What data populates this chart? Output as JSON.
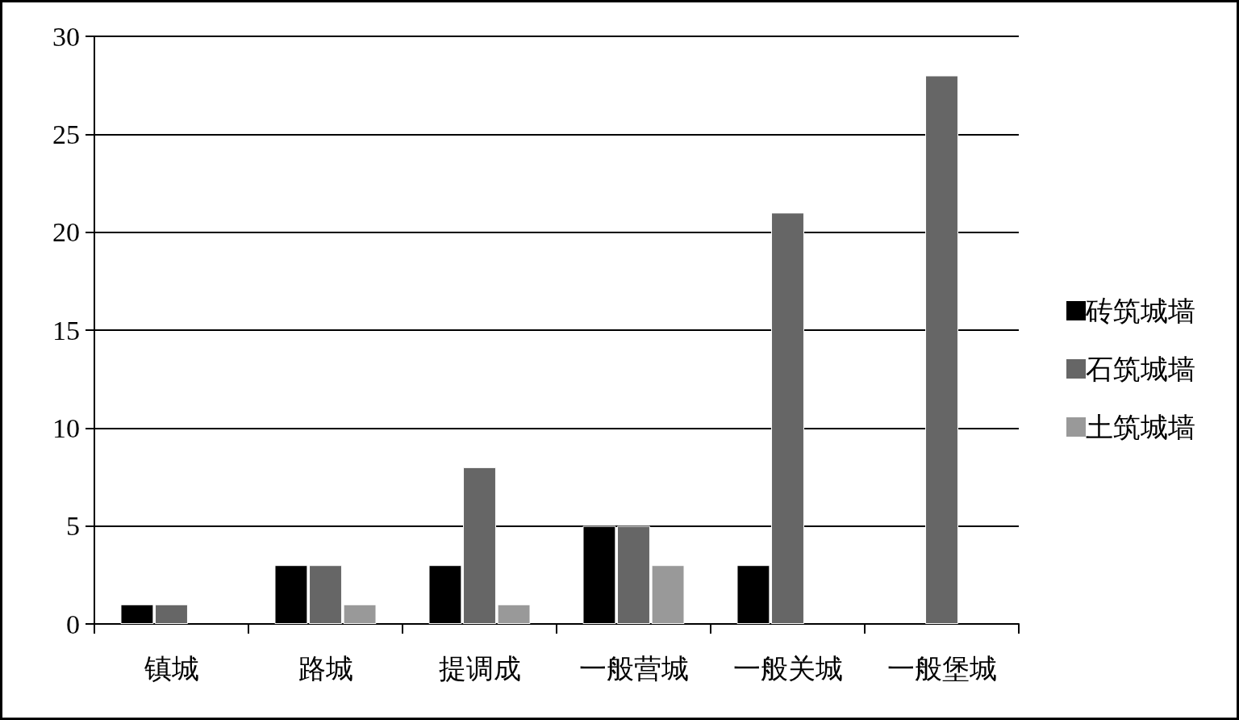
{
  "chart_data": {
    "type": "bar",
    "categories": [
      "镇城",
      "路城",
      "提调成",
      "一般营城",
      "一般关城",
      "一般堡城"
    ],
    "series": [
      {
        "name": "砖筑城墙",
        "color": "#000000",
        "values": [
          1,
          3,
          3,
          5,
          3,
          null
        ]
      },
      {
        "name": "石筑城墙",
        "color": "#666666",
        "values": [
          1,
          3,
          8,
          5,
          21,
          28
        ]
      },
      {
        "name": "土筑城墙",
        "color": "#999999",
        "values": [
          null,
          1,
          1,
          3,
          null,
          null
        ]
      }
    ],
    "ylim": [
      0,
      30
    ],
    "yticks": [
      0,
      5,
      10,
      15,
      20,
      25,
      30
    ],
    "grid": "y",
    "legend": "right"
  }
}
